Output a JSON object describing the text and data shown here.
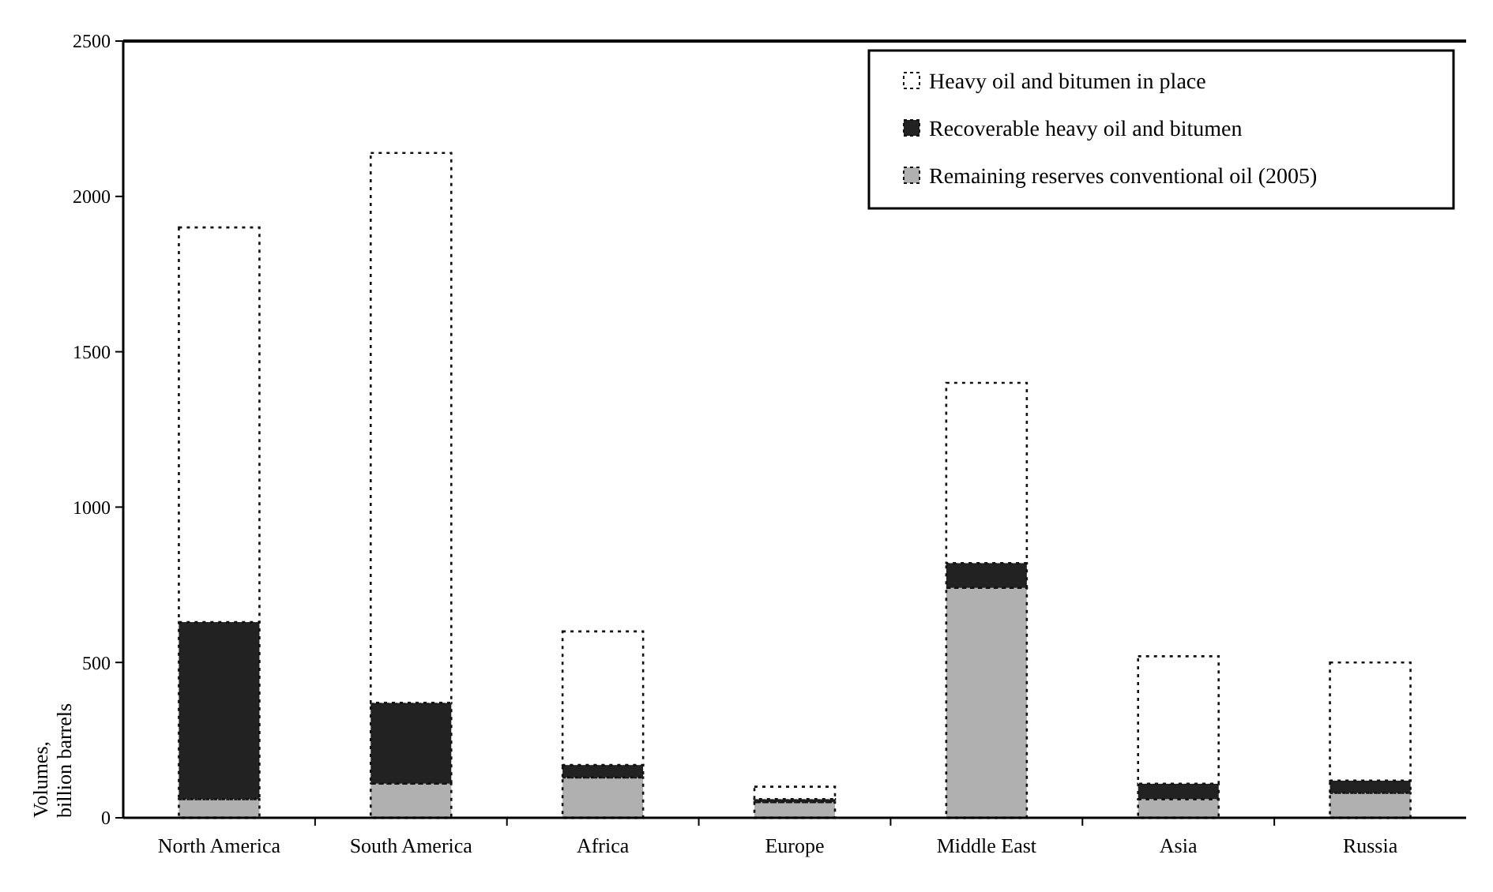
{
  "chart_data": {
    "type": "bar",
    "stacked": true,
    "ylabel": "Volumes, billion barrels",
    "categories": [
      "North America",
      "South America",
      "Africa",
      "Europe",
      "Middle East",
      "Asia",
      "Russia"
    ],
    "series": [
      {
        "name": "Remaining reserves conventional oil (2005)",
        "color": "#b0b0b0",
        "values": [
          60,
          110,
          130,
          50,
          740,
          60,
          80
        ]
      },
      {
        "name": "Recoverable heavy oil and bitumen",
        "color": "#222222",
        "values": [
          570,
          260,
          40,
          10,
          80,
          50,
          40
        ]
      },
      {
        "name": "Heavy oil and bitumen in place",
        "color": "#ffffff",
        "values": [
          1270,
          1770,
          430,
          40,
          580,
          410,
          380
        ]
      }
    ],
    "ylim": [
      0,
      2500
    ],
    "yticks": [
      0,
      500,
      1000,
      1500,
      2000,
      2500
    ],
    "legend": "top right"
  }
}
